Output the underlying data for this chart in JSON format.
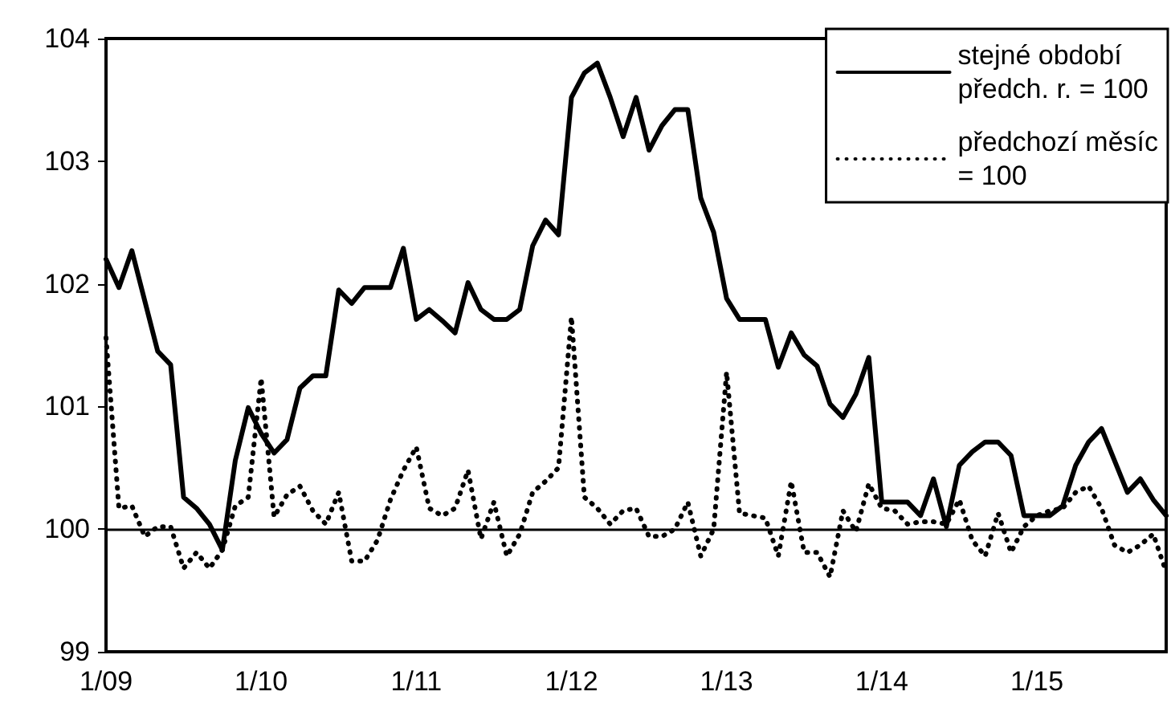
{
  "chart_data": {
    "type": "line",
    "categories": [
      "1/09",
      null,
      null,
      null,
      null,
      null,
      null,
      null,
      null,
      null,
      null,
      null,
      "1/10",
      null,
      null,
      null,
      null,
      null,
      null,
      null,
      null,
      null,
      null,
      null,
      "1/11",
      null,
      null,
      null,
      null,
      null,
      null,
      null,
      null,
      null,
      null,
      null,
      "1/12",
      null,
      null,
      null,
      null,
      null,
      null,
      null,
      null,
      null,
      null,
      null,
      "1/13",
      null,
      null,
      null,
      null,
      null,
      null,
      null,
      null,
      null,
      null,
      null,
      "1/14",
      null,
      null,
      null,
      null,
      null,
      null,
      null,
      null,
      null,
      null,
      null,
      "1/15",
      null,
      null,
      null,
      null,
      null,
      null,
      null,
      null,
      null,
      null
    ],
    "series": [
      {
        "name": "stejné období předch. r. = 100",
        "color": "#000000",
        "line_style": "solid",
        "values": [
          102.2,
          101.97,
          102.27,
          101.86,
          101.45,
          101.34,
          100.26,
          100.17,
          100.04,
          99.83,
          100.56,
          100.99,
          100.78,
          100.62,
          100.73,
          101.15,
          101.25,
          101.25,
          101.95,
          101.84,
          101.97,
          101.97,
          101.97,
          102.29,
          101.71,
          101.79,
          101.7,
          101.6,
          102.01,
          101.79,
          101.71,
          101.71,
          101.79,
          102.31,
          102.52,
          102.4,
          103.52,
          103.72,
          103.8,
          103.52,
          103.2,
          103.52,
          103.09,
          103.29,
          103.42,
          103.42,
          102.7,
          102.42,
          101.88,
          101.71,
          101.71,
          101.71,
          101.32,
          101.6,
          101.42,
          101.33,
          101.02,
          100.91,
          101.1,
          101.4,
          100.22,
          100.22,
          100.22,
          100.11,
          100.41,
          100.02,
          100.52,
          100.63,
          100.71,
          100.71,
          100.6,
          100.11,
          100.11,
          100.11,
          100.19,
          100.52,
          100.71,
          100.82,
          100.56,
          100.3,
          100.41,
          100.24,
          100.11
        ]
      },
      {
        "name": "předchozí měsíc = 100",
        "color": "#000000",
        "line_style": "dotted",
        "values": [
          101.56,
          100.17,
          100.19,
          99.94,
          100.02,
          100.02,
          99.68,
          99.81,
          99.68,
          99.83,
          100.19,
          100.26,
          101.23,
          100.1,
          100.28,
          100.35,
          100.15,
          100.04,
          100.3,
          99.74,
          99.74,
          99.91,
          100.24,
          100.48,
          100.67,
          100.17,
          100.11,
          100.17,
          100.48,
          99.92,
          100.22,
          99.78,
          99.96,
          100.3,
          100.39,
          100.5,
          101.73,
          100.26,
          100.17,
          100.04,
          100.15,
          100.17,
          99.94,
          99.94,
          100.0,
          100.22,
          99.78,
          100.0,
          101.28,
          100.13,
          100.11,
          100.09,
          99.78,
          100.39,
          99.81,
          99.81,
          99.61,
          100.15,
          99.98,
          100.37,
          100.17,
          100.15,
          100.04,
          100.06,
          100.06,
          100.04,
          100.24,
          99.91,
          99.78,
          100.13,
          99.81,
          100.02,
          100.11,
          100.15,
          100.17,
          100.3,
          100.35,
          100.17,
          99.87,
          99.81,
          99.87,
          99.96,
          99.65
        ]
      }
    ],
    "ylim": [
      99,
      104
    ],
    "yticks": [
      99,
      100,
      101,
      102,
      103,
      104
    ],
    "grid": false,
    "legend": "top right",
    "marker": "none",
    "ref_lines": [
      {
        "axis": "y",
        "value": 100,
        "color": "#000000",
        "line_style": "solid"
      }
    ]
  }
}
